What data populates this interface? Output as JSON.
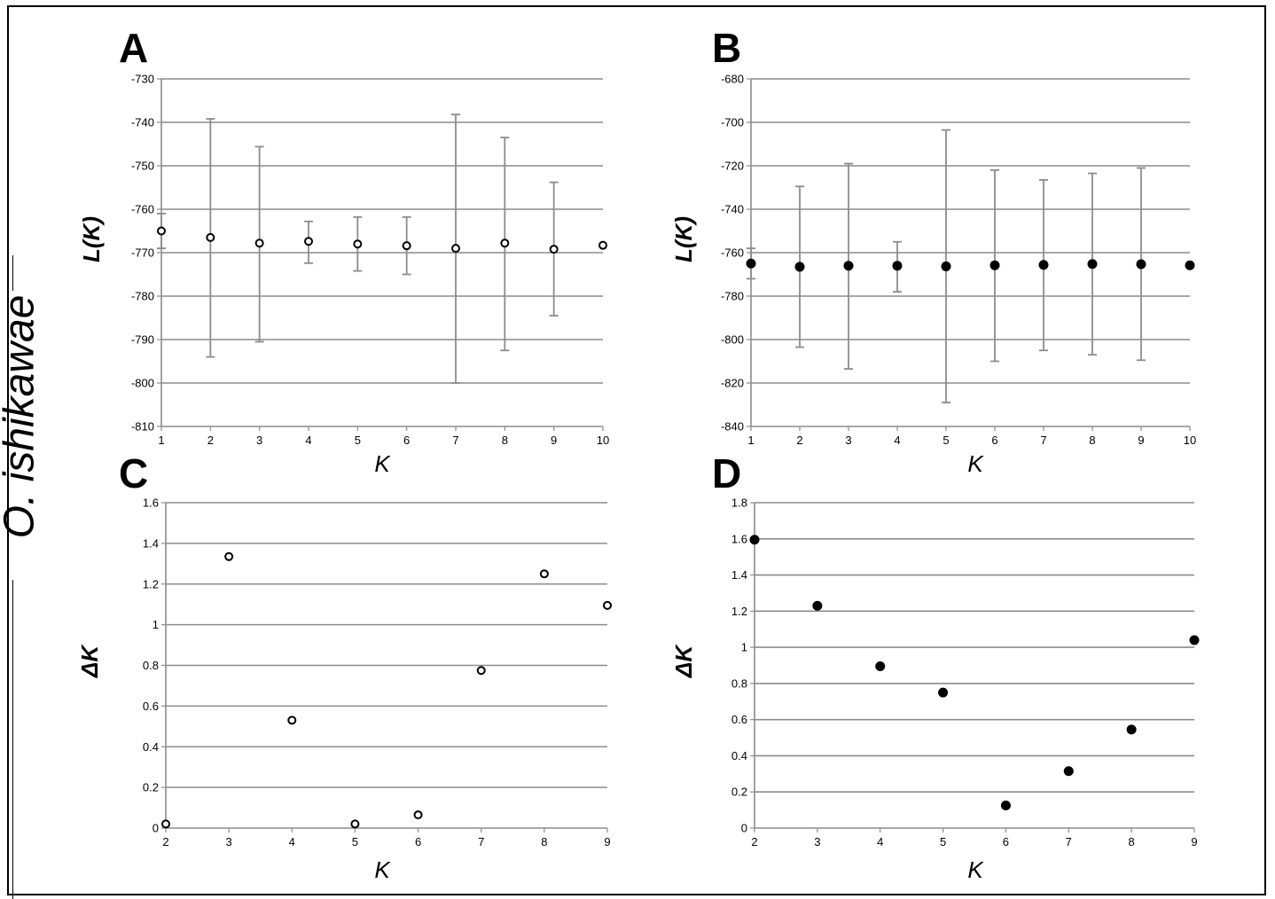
{
  "side_label": "O. ishikawae",
  "chart_data": [
    {
      "panel": "A",
      "type": "scatter",
      "xlabel": "K",
      "ylabel": "L(K)",
      "xlim": [
        1,
        10
      ],
      "ylim": [
        -810,
        -730
      ],
      "x_ticks": [
        1,
        2,
        3,
        4,
        5,
        6,
        7,
        8,
        9,
        10
      ],
      "y_ticks": [
        -730,
        -740,
        -750,
        -760,
        -770,
        -780,
        -790,
        -800,
        -810
      ],
      "marker": "open",
      "grid": true,
      "x": [
        1,
        2,
        3,
        4,
        5,
        6,
        7,
        8,
        9,
        10
      ],
      "y": [
        -765.0,
        -766.5,
        -767.8,
        -767.4,
        -768.0,
        -768.4,
        -769.0,
        -767.8,
        -769.2,
        -768.3
      ],
      "err_low": [
        -769.0,
        -794.0,
        -790.5,
        -772.4,
        -774.2,
        -775.0,
        -800.0,
        -792.5,
        -784.5,
        null
      ],
      "err_high": [
        -761.0,
        -739.2,
        -745.6,
        -762.8,
        -761.8,
        -761.8,
        -738.2,
        -743.5,
        -753.8,
        null
      ]
    },
    {
      "panel": "B",
      "type": "scatter",
      "xlabel": "K",
      "ylabel": "L(K)",
      "xlim": [
        1,
        10
      ],
      "ylim": [
        -840,
        -680
      ],
      "x_ticks": [
        1,
        2,
        3,
        4,
        5,
        6,
        7,
        8,
        9,
        10
      ],
      "y_ticks": [
        -680,
        -700,
        -720,
        -740,
        -760,
        -780,
        -800,
        -820,
        -840
      ],
      "marker": "filled",
      "grid": true,
      "x": [
        1,
        2,
        3,
        4,
        5,
        6,
        7,
        8,
        9,
        10
      ],
      "y": [
        -765.0,
        -766.5,
        -766.0,
        -766.0,
        -766.3,
        -765.8,
        -765.6,
        -765.2,
        -765.3,
        -765.8
      ],
      "err_low": [
        -772.0,
        -803.5,
        -813.5,
        -778.0,
        -829.0,
        -810.0,
        -805.0,
        -807.0,
        -809.5,
        null
      ],
      "err_high": [
        -758.0,
        -729.5,
        -719.0,
        -755.0,
        -703.5,
        -722.0,
        -726.5,
        -723.5,
        -721.0,
        null
      ]
    },
    {
      "panel": "C",
      "type": "scatter",
      "xlabel": "K",
      "ylabel": "ΔK",
      "xlim": [
        2,
        9
      ],
      "ylim": [
        0,
        1.6
      ],
      "x_ticks": [
        2,
        3,
        4,
        5,
        6,
        7,
        8,
        9
      ],
      "y_ticks": [
        "1.6",
        "1.4",
        "1.2",
        "1",
        "0.8",
        "0.6",
        "0.4",
        "0.2",
        "0"
      ],
      "marker": "open",
      "grid": true,
      "x": [
        2,
        3,
        4,
        5,
        6,
        7,
        8,
        9
      ],
      "y": [
        0.02,
        1.335,
        0.53,
        0.02,
        0.065,
        0.775,
        1.25,
        1.095
      ]
    },
    {
      "panel": "D",
      "type": "scatter",
      "xlabel": "K",
      "ylabel": "ΔK",
      "xlim": [
        2,
        9
      ],
      "ylim": [
        0,
        1.8
      ],
      "x_ticks": [
        2,
        3,
        4,
        5,
        6,
        7,
        8,
        9
      ],
      "y_ticks": [
        "1.8",
        "1.6",
        "1.4",
        "1.2",
        "1",
        "0.8",
        "0.6",
        "0.4",
        "0.2",
        "0"
      ],
      "marker": "filled",
      "grid": true,
      "x": [
        2,
        3,
        4,
        5,
        6,
        7,
        8,
        9
      ],
      "y": [
        1.595,
        1.23,
        0.895,
        0.75,
        0.125,
        0.315,
        0.545,
        1.04
      ]
    }
  ]
}
